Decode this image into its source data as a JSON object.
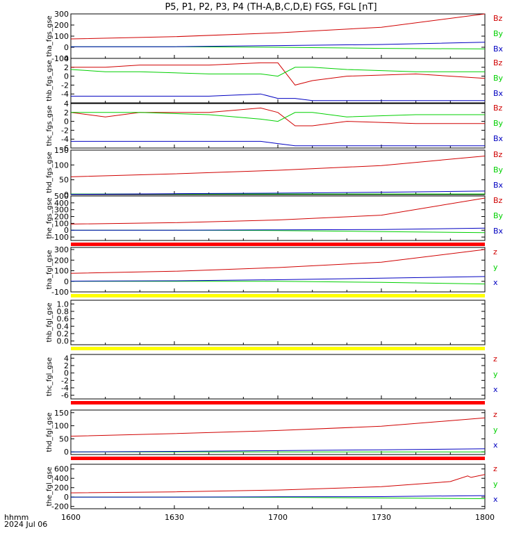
{
  "title": "P5, P1, P2, P3, P4 (TH-A,B,C,D,E) FGS, FGL [nT]",
  "colors": {
    "z": "#d00000",
    "y": "#00d000",
    "x": "#0000c0",
    "bar_red": "#ff0000",
    "bar_yellow": "#ffff00"
  },
  "footer": {
    "hhmm": "hhmm",
    "date": "2024 Jul 06"
  },
  "xaxis": {
    "ticks": [
      "1600",
      "1630",
      "1700",
      "1730",
      "1800"
    ],
    "range_min": [
      0,
      120
    ]
  },
  "chart_data": [
    {
      "type": "line",
      "ylabel": "tha_fgs_gse",
      "ylim": [
        -100,
        300
      ],
      "yticks": [
        "300",
        "200",
        "100",
        "0",
        "-100"
      ],
      "legend": [
        "Bz",
        "By",
        "Bx"
      ],
      "series": [
        {
          "name": "Bz",
          "x": [
            0,
            30,
            60,
            90,
            120
          ],
          "y": [
            75,
            95,
            130,
            180,
            300
          ]
        },
        {
          "name": "By",
          "x": [
            0,
            30,
            60,
            90,
            120
          ],
          "y": [
            5,
            5,
            0,
            -10,
            -15
          ]
        },
        {
          "name": "Bx",
          "x": [
            0,
            30,
            60,
            90,
            120
          ],
          "y": [
            5,
            5,
            15,
            25,
            45
          ]
        }
      ]
    },
    {
      "type": "line",
      "ylabel": "thb_fgs_gse",
      "ylim": [
        -6,
        4
      ],
      "yticks": [
        "4",
        "2",
        "0",
        "-2",
        "-4"
      ],
      "legend": [
        "Bz",
        "By",
        "Bx"
      ],
      "series": [
        {
          "name": "Bz",
          "x": [
            0,
            10,
            20,
            40,
            55,
            60,
            65,
            70,
            80,
            100,
            120
          ],
          "y": [
            2,
            2,
            2.5,
            2.5,
            3,
            3,
            -2,
            -1,
            0,
            0.5,
            -0.5
          ]
        },
        {
          "name": "By",
          "x": [
            0,
            10,
            20,
            40,
            55,
            60,
            65,
            70,
            80,
            100,
            120
          ],
          "y": [
            1.5,
            1,
            1,
            0.5,
            0.5,
            0,
            2,
            2,
            1.5,
            1,
            1
          ]
        },
        {
          "name": "Bx",
          "x": [
            0,
            10,
            20,
            40,
            55,
            60,
            65,
            70,
            80,
            100,
            120
          ],
          "y": [
            -4.5,
            -4.5,
            -4.5,
            -4.5,
            -4,
            -5,
            -5,
            -5.5,
            -5.5,
            -5.5,
            -5.5
          ]
        }
      ]
    },
    {
      "type": "line",
      "ylabel": "thc_fgs_gse",
      "ylim": [
        -6,
        4
      ],
      "yticks": [
        "4",
        "2",
        "0",
        "-2",
        "-4",
        "-6"
      ],
      "legend": [
        "Bz",
        "By",
        "Bx"
      ],
      "series": [
        {
          "name": "Bz",
          "x": [
            0,
            10,
            20,
            40,
            55,
            60,
            65,
            70,
            80,
            100,
            120
          ],
          "y": [
            2,
            1,
            2,
            2,
            3,
            2,
            -1,
            -1,
            0,
            -0.5,
            -0.5
          ]
        },
        {
          "name": "By",
          "x": [
            0,
            10,
            20,
            40,
            55,
            60,
            65,
            70,
            80,
            100,
            120
          ],
          "y": [
            2,
            2,
            2,
            1.5,
            0.5,
            0,
            2,
            2,
            1,
            1.5,
            1.5
          ]
        },
        {
          "name": "Bx",
          "x": [
            0,
            10,
            20,
            40,
            55,
            60,
            65,
            70,
            80,
            100,
            120
          ],
          "y": [
            -4.5,
            -4.5,
            -4.5,
            -4.5,
            -4.5,
            -5,
            -5.5,
            -5.5,
            -5.5,
            -5.5,
            -5.5
          ]
        }
      ]
    },
    {
      "type": "line",
      "ylabel": "thd_fgs_gse",
      "ylim": [
        0,
        150
      ],
      "yticks": [
        "150",
        "100",
        "50",
        "0"
      ],
      "legend": [
        "Bz",
        "By",
        "Bx"
      ],
      "series": [
        {
          "name": "Bz",
          "x": [
            0,
            30,
            60,
            90,
            120
          ],
          "y": [
            60,
            70,
            82,
            98,
            130
          ]
        },
        {
          "name": "By",
          "x": [
            0,
            30,
            60,
            90,
            120
          ],
          "y": [
            2,
            2,
            2,
            2,
            2
          ]
        },
        {
          "name": "Bx",
          "x": [
            0,
            30,
            60,
            90,
            120
          ],
          "y": [
            1,
            3,
            5,
            8,
            12
          ]
        }
      ]
    },
    {
      "type": "line",
      "ylabel": "the_fgs_gse",
      "ylim": [
        -150,
        500
      ],
      "yticks": [
        "500",
        "400",
        "300",
        "200",
        "100",
        "0",
        "-100"
      ],
      "legend": [
        "Bz",
        "By",
        "Bx"
      ],
      "series": [
        {
          "name": "Bz",
          "x": [
            0,
            30,
            60,
            90,
            120
          ],
          "y": [
            90,
            110,
            150,
            220,
            470
          ]
        },
        {
          "name": "By",
          "x": [
            0,
            30,
            60,
            90,
            120
          ],
          "y": [
            0,
            0,
            -5,
            -20,
            -35
          ]
        },
        {
          "name": "Bx",
          "x": [
            0,
            30,
            60,
            90,
            120
          ],
          "y": [
            0,
            0,
            5,
            10,
            30
          ]
        }
      ]
    },
    {
      "type": "line",
      "ylabel": "tha_fgl_gse",
      "ylim": [
        -100,
        320
      ],
      "yticks": [
        "300",
        "200",
        "100",
        "0",
        "-100"
      ],
      "legend": [
        "z",
        "y",
        "x"
      ],
      "series": [
        {
          "name": "z",
          "x": [
            0,
            30,
            60,
            90,
            120
          ],
          "y": [
            75,
            95,
            130,
            180,
            300
          ]
        },
        {
          "name": "y",
          "x": [
            0,
            30,
            60,
            90,
            120
          ],
          "y": [
            0,
            0,
            0,
            -10,
            -25
          ]
        },
        {
          "name": "x",
          "x": [
            0,
            30,
            60,
            90,
            120
          ],
          "y": [
            2,
            5,
            15,
            30,
            45
          ]
        }
      ]
    },
    {
      "type": "line",
      "ylabel": "thb_fgl_gse",
      "ylim": [
        -0.1,
        1.1
      ],
      "yticks": [
        "1.0",
        "0.8",
        "0.6",
        "0.4",
        "0.2",
        "0.0"
      ],
      "legend": [],
      "series": []
    },
    {
      "type": "line",
      "ylabel": "thc_fgl_gse",
      "ylim": [
        -7,
        5
      ],
      "yticks": [
        "4",
        "2",
        "0",
        "-2",
        "-4",
        "-6"
      ],
      "legend": [
        "z",
        "y",
        "x"
      ],
      "series": []
    },
    {
      "type": "line",
      "ylabel": "thd_fgl_gse",
      "ylim": [
        -10,
        160
      ],
      "yticks": [
        "150",
        "100",
        "50",
        "0"
      ],
      "legend": [
        "z",
        "y",
        "x"
      ],
      "series": [
        {
          "name": "z",
          "x": [
            0,
            30,
            60,
            90,
            120
          ],
          "y": [
            60,
            70,
            82,
            98,
            130
          ]
        },
        {
          "name": "y",
          "x": [
            0,
            30,
            60,
            90,
            120
          ],
          "y": [
            0,
            0,
            0,
            0,
            0
          ]
        },
        {
          "name": "x",
          "x": [
            0,
            30,
            60,
            90,
            120
          ],
          "y": [
            0,
            2,
            5,
            8,
            12
          ]
        }
      ]
    },
    {
      "type": "line",
      "ylabel": "the_fgl_gse",
      "ylim": [
        -250,
        700
      ],
      "yticks": [
        "600",
        "400",
        "200",
        "0",
        "-200"
      ],
      "legend": [
        "z",
        "y",
        "x"
      ],
      "series": [
        {
          "name": "z",
          "x": [
            0,
            30,
            60,
            90,
            110,
            115,
            116,
            120
          ],
          "y": [
            90,
            110,
            150,
            220,
            330,
            450,
            420,
            480
          ]
        },
        {
          "name": "y",
          "x": [
            0,
            30,
            60,
            90,
            120
          ],
          "y": [
            0,
            0,
            -5,
            -20,
            -35
          ]
        },
        {
          "name": "x",
          "x": [
            0,
            30,
            60,
            90,
            120
          ],
          "y": [
            0,
            0,
            5,
            10,
            30
          ]
        }
      ]
    }
  ]
}
